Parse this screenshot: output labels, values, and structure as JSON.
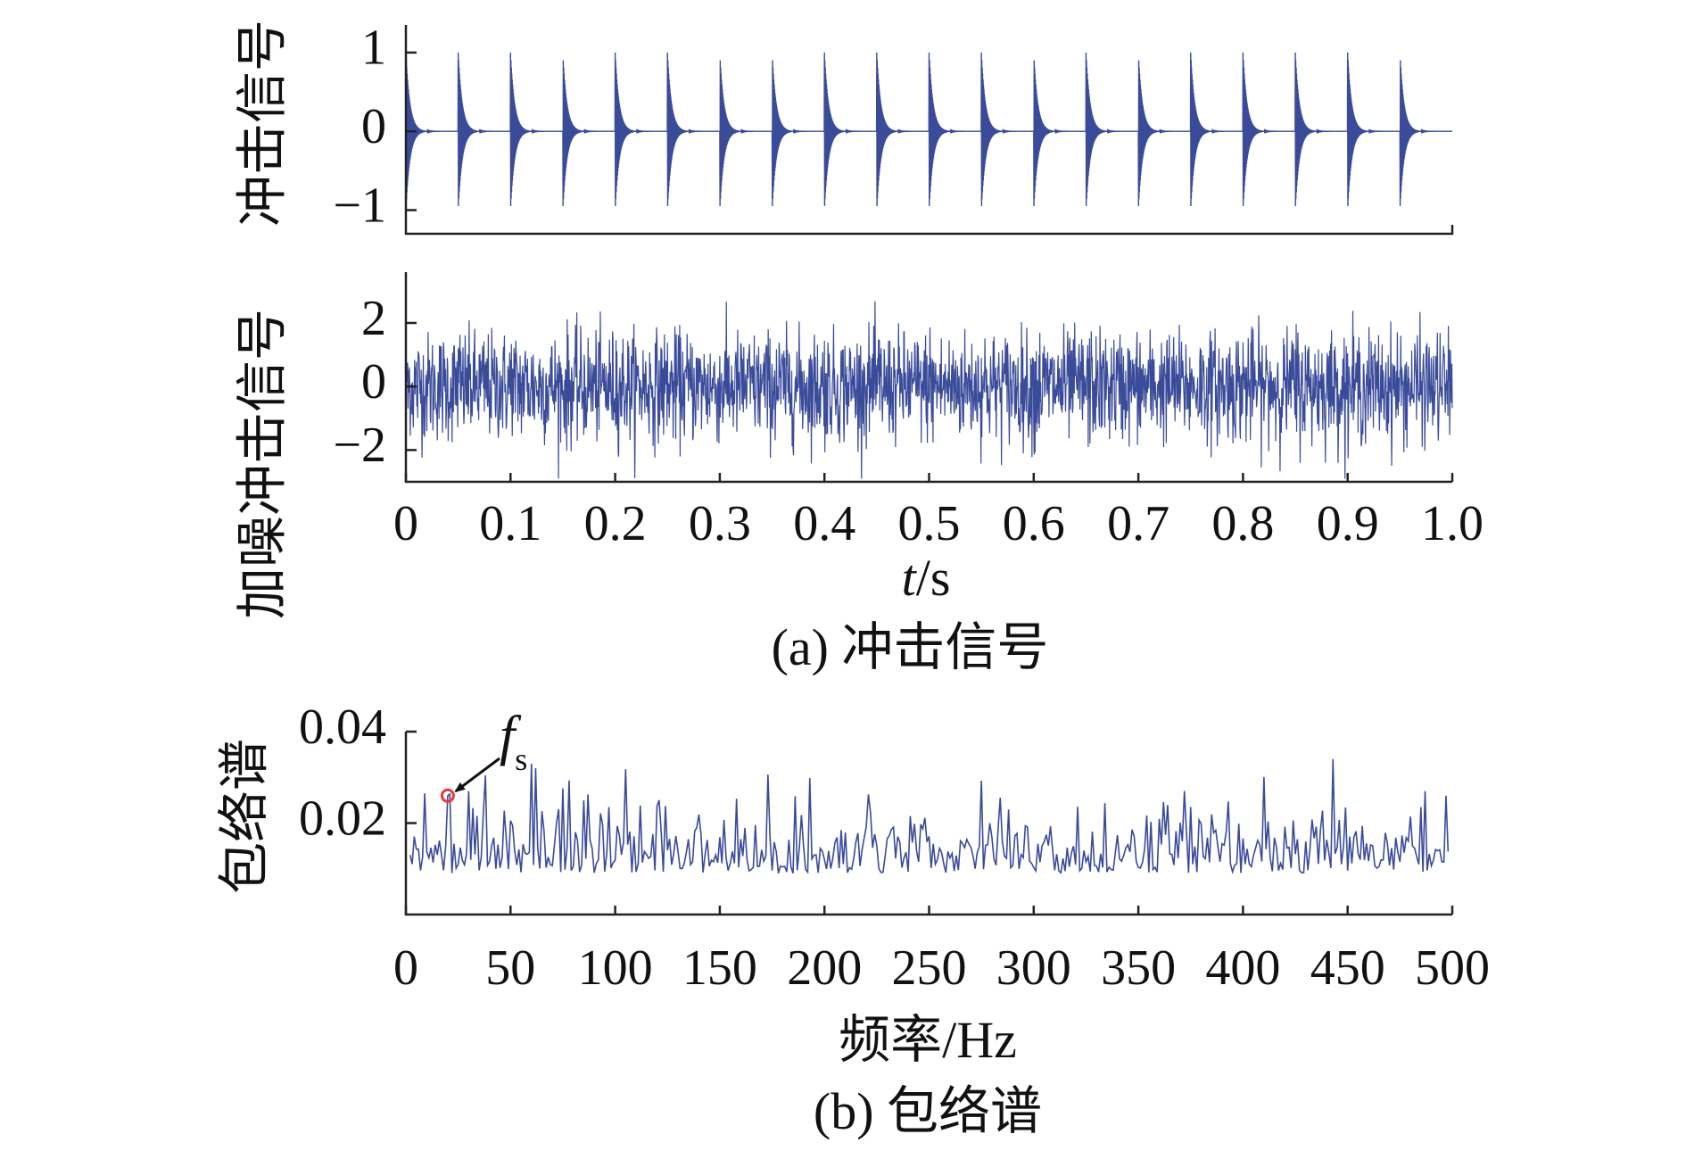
{
  "chart_data": [
    {
      "type": "line",
      "panel": "a-top",
      "ylabel": "冲击信号",
      "ylim": [
        -1.3,
        1.35
      ],
      "xlim": [
        0,
        1.0
      ],
      "yticks": [
        {
          "value": 1,
          "label": "1"
        },
        {
          "value": 0,
          "label": "0"
        },
        {
          "value": -1,
          "label": "−1"
        }
      ],
      "impulse_period": 0.05,
      "impulse_start": 0.0,
      "impulse_count": 20,
      "amplitude": 1.0,
      "grid": false,
      "line_color": "#3a4b9a"
    },
    {
      "type": "line",
      "panel": "a-bottom",
      "ylabel": "加噪冲击信号",
      "xlabel_italic": "t",
      "xlabel_rest": "/s",
      "ylim": [
        -3.0,
        3.6
      ],
      "xlim": [
        0,
        1.0
      ],
      "yticks": [
        {
          "value": 2,
          "label": "2"
        },
        {
          "value": 0,
          "label": "0"
        },
        {
          "value": -2,
          "label": "−2"
        }
      ],
      "xticks": [
        {
          "value": 0,
          "label": "0"
        },
        {
          "value": 0.1,
          "label": "0.1"
        },
        {
          "value": 0.2,
          "label": "0.2"
        },
        {
          "value": 0.3,
          "label": "0.3"
        },
        {
          "value": 0.4,
          "label": "0.4"
        },
        {
          "value": 0.5,
          "label": "0.5"
        },
        {
          "value": 0.6,
          "label": "0.6"
        },
        {
          "value": 0.7,
          "label": "0.7"
        },
        {
          "value": 0.8,
          "label": "0.8"
        },
        {
          "value": 0.9,
          "label": "0.9"
        },
        {
          "value": 1.0,
          "label": "1.0"
        }
      ],
      "grid": false,
      "line_color": "#3a4b9a"
    },
    {
      "type": "line",
      "panel": "b",
      "ylabel": "包络谱",
      "xlabel": "频率/Hz",
      "ylim": [
        0.0,
        0.04
      ],
      "xlim": [
        0,
        500
      ],
      "yticks": [
        {
          "value": 0.04,
          "label": "0.04"
        },
        {
          "value": 0.02,
          "label": "0.02"
        }
      ],
      "xticks": [
        {
          "value": 0,
          "label": "0"
        },
        {
          "value": 50,
          "label": "50"
        },
        {
          "value": 100,
          "label": "100"
        },
        {
          "value": 150,
          "label": "150"
        },
        {
          "value": 200,
          "label": "200"
        },
        {
          "value": 250,
          "label": "250"
        },
        {
          "value": 300,
          "label": "300"
        },
        {
          "value": 350,
          "label": "350"
        },
        {
          "value": 400,
          "label": "400"
        },
        {
          "value": 450,
          "label": "450"
        },
        {
          "value": 500,
          "label": "500"
        }
      ],
      "annotation": {
        "text_italic": "f",
        "text_sub": "s",
        "x": 20,
        "y": 0.026,
        "marker_color": "#e23b3b"
      },
      "grid": false,
      "line_color": "#3a4b9a"
    }
  ],
  "captions": {
    "a": "(a) 冲击信号",
    "b": "(b) 包络谱"
  }
}
